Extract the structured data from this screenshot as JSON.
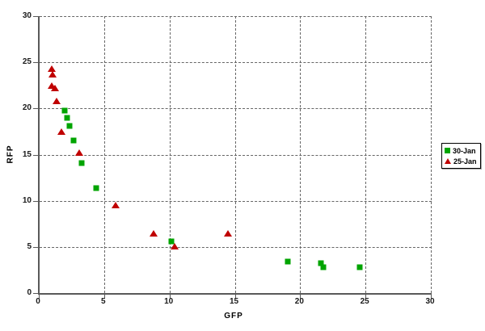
{
  "chart_data": {
    "type": "scatter",
    "title": "",
    "xlabel": "GFP",
    "ylabel": "RFP",
    "xlim": [
      0,
      30
    ],
    "ylim": [
      0,
      30
    ],
    "xticks": [
      0,
      5,
      10,
      15,
      20,
      25,
      30
    ],
    "yticks": [
      0,
      5,
      10,
      15,
      20,
      25,
      30
    ],
    "grid": "dashed",
    "legend_position": "right",
    "series": [
      {
        "name": "30-Jan",
        "marker": "square",
        "color": "#00A400",
        "points": [
          [
            1.9,
            19.8
          ],
          [
            2.1,
            19.0
          ],
          [
            2.3,
            18.1
          ],
          [
            2.6,
            16.5
          ],
          [
            3.2,
            14.1
          ],
          [
            4.3,
            11.4
          ],
          [
            10.1,
            5.6
          ],
          [
            19.0,
            3.4
          ],
          [
            21.5,
            3.2
          ],
          [
            21.7,
            2.8
          ],
          [
            24.5,
            2.8
          ]
        ]
      },
      {
        "name": "25-Jan",
        "marker": "triangle",
        "color": "#C00000",
        "points": [
          [
            0.9,
            24.3
          ],
          [
            1.0,
            23.7
          ],
          [
            0.9,
            22.5
          ],
          [
            1.2,
            22.2
          ],
          [
            1.3,
            20.8
          ],
          [
            1.7,
            17.5
          ],
          [
            3.0,
            15.2
          ],
          [
            5.8,
            9.5
          ],
          [
            8.7,
            6.5
          ],
          [
            10.3,
            5.1
          ],
          [
            14.4,
            6.5
          ]
        ]
      }
    ]
  },
  "colors": {
    "grid": "#666666",
    "axis": "#595959",
    "text": "#1a1a1a",
    "background": "#ffffff",
    "legend_border": "#000000"
  }
}
